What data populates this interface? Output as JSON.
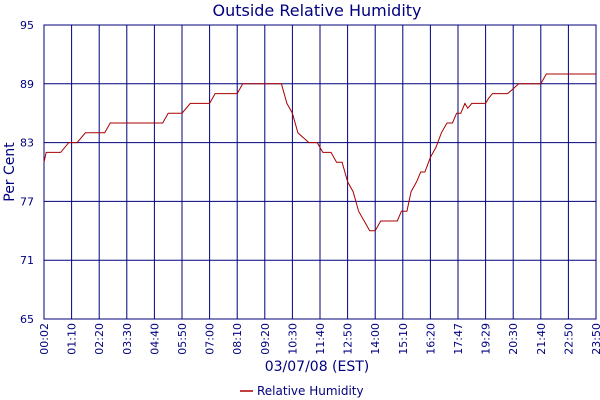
{
  "chart_data": {
    "type": "line",
    "title": "Outside Relative Humidity",
    "xlabel": "03/07/08 (EST)",
    "ylabel": "Per Cent",
    "ylim": [
      65,
      95
    ],
    "yticks": [
      "65",
      "71",
      "77",
      "83",
      "89",
      "95"
    ],
    "categories": [
      "00:02",
      "01:10",
      "02:20",
      "03:30",
      "04:40",
      "05:50",
      "07:00",
      "08:10",
      "09:20",
      "10:30",
      "11:40",
      "12:50",
      "14:00",
      "15:10",
      "16:20",
      "17:47",
      "19:29",
      "20:30",
      "21:40",
      "22:50",
      "23:50"
    ],
    "grid": true,
    "legend_position": "bottom",
    "colors": {
      "line": "#aa0000",
      "grid": "#00007f",
      "text": "#00007f"
    },
    "series": [
      {
        "name": "Relative Humidity",
        "values": [
          [
            0.0,
            81
          ],
          [
            0.08,
            82
          ],
          [
            0.35,
            82
          ],
          [
            0.6,
            82
          ],
          [
            0.9,
            83
          ],
          [
            1.2,
            83
          ],
          [
            1.5,
            84
          ],
          [
            2.2,
            84
          ],
          [
            2.4,
            85
          ],
          [
            3.0,
            85
          ],
          [
            4.0,
            85
          ],
          [
            4.3,
            85
          ],
          [
            4.5,
            86
          ],
          [
            5.0,
            86
          ],
          [
            5.3,
            87
          ],
          [
            6.0,
            87
          ],
          [
            6.2,
            88
          ],
          [
            7.0,
            88
          ],
          [
            7.2,
            89
          ],
          [
            8.0,
            89
          ],
          [
            8.4,
            89
          ],
          [
            8.6,
            89
          ],
          [
            8.8,
            87
          ],
          [
            9.0,
            86
          ],
          [
            9.2,
            84
          ],
          [
            9.4,
            83.5
          ],
          [
            9.6,
            83
          ],
          [
            9.9,
            83
          ],
          [
            10.1,
            82
          ],
          [
            10.4,
            82
          ],
          [
            10.6,
            81
          ],
          [
            10.8,
            81
          ],
          [
            11.0,
            79
          ],
          [
            11.2,
            78
          ],
          [
            11.4,
            76
          ],
          [
            11.6,
            75
          ],
          [
            11.8,
            74
          ],
          [
            12.0,
            74
          ],
          [
            12.2,
            75
          ],
          [
            12.5,
            75
          ],
          [
            12.8,
            75
          ],
          [
            12.95,
            76
          ],
          [
            13.15,
            76
          ],
          [
            13.3,
            78
          ],
          [
            13.5,
            79
          ],
          [
            13.65,
            80
          ],
          [
            13.8,
            80
          ],
          [
            14.0,
            81.5
          ],
          [
            14.2,
            82.5
          ],
          [
            14.4,
            84
          ],
          [
            14.6,
            85
          ],
          [
            14.8,
            85
          ],
          [
            14.95,
            86
          ],
          [
            15.1,
            86
          ],
          [
            15.25,
            87
          ],
          [
            15.35,
            86.5
          ],
          [
            15.5,
            87
          ],
          [
            16.0,
            87
          ],
          [
            16.1,
            87.5
          ],
          [
            16.25,
            88
          ],
          [
            16.8,
            88
          ],
          [
            17.0,
            88.5
          ],
          [
            17.2,
            89
          ],
          [
            18.0,
            89
          ],
          [
            18.2,
            90
          ],
          [
            19.0,
            90
          ],
          [
            20.0,
            90
          ]
        ]
      }
    ]
  }
}
